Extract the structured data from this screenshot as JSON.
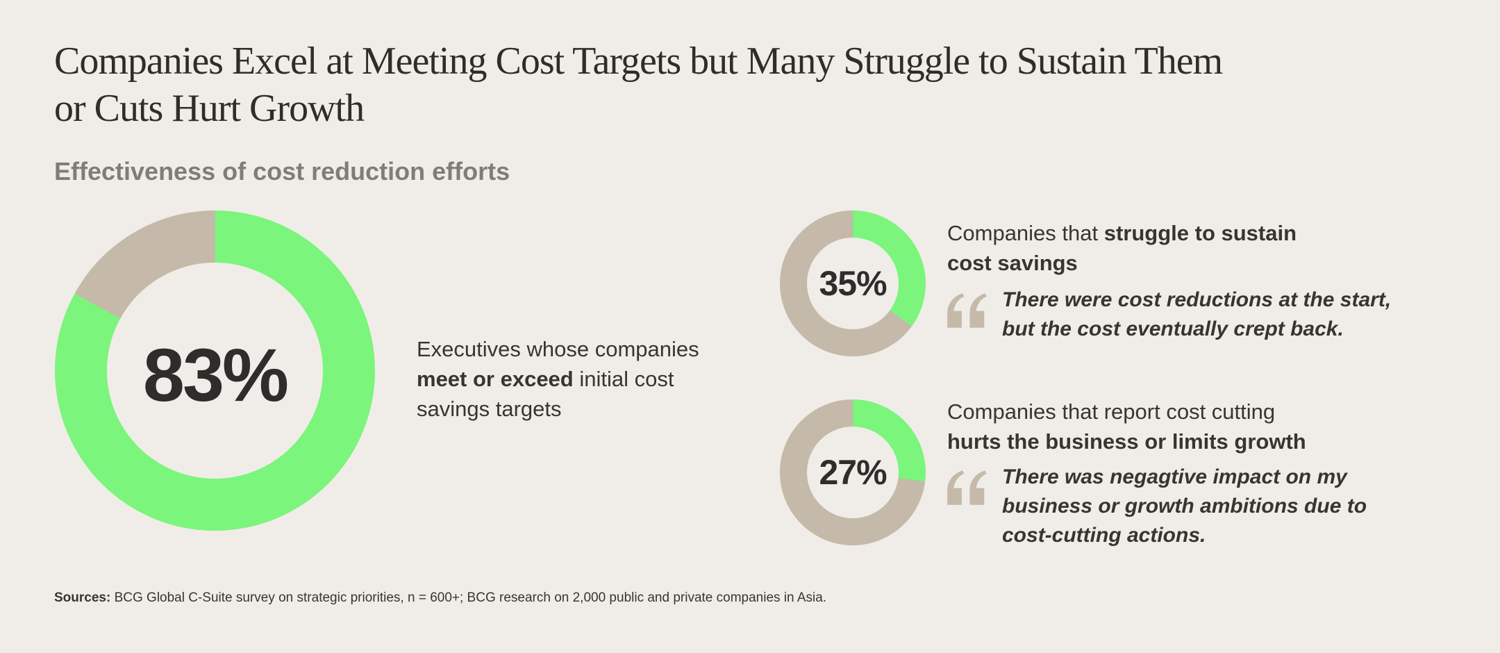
{
  "header": {
    "title": "Companies Excel at Meeting Cost Targets but Many Struggle to Sustain Them\nor Cuts Hurt Growth",
    "subtitle": "Effectiveness of cost reduction efforts"
  },
  "colors": {
    "background": "#F0EDE8",
    "green": "#7CF57C",
    "beige": "#C5B9A9",
    "text_dark": "#2E2D2B",
    "text_body": "#38352F",
    "subtitle_gray": "#807D78"
  },
  "chart_data": [
    {
      "type": "pie",
      "subtype": "donut",
      "center_label": "83%",
      "values": [
        83,
        17
      ],
      "labels": [
        "Executives whose companies meet or exceed initial cost savings targets",
        "Remainder"
      ],
      "segment_colors": [
        "green",
        "beige"
      ],
      "start_angle_deg": 0,
      "direction": "clockwise"
    },
    {
      "type": "pie",
      "subtype": "donut",
      "center_label": "35%",
      "values": [
        35,
        65
      ],
      "labels": [
        "Companies that struggle to sustain cost savings",
        "Remainder"
      ],
      "segment_colors": [
        "green",
        "beige"
      ],
      "start_angle_deg": 0,
      "direction": "clockwise"
    },
    {
      "type": "pie",
      "subtype": "donut",
      "center_label": "27%",
      "values": [
        27,
        73
      ],
      "labels": [
        "Companies that report cost cutting hurts the business or limits growth",
        "Remainder"
      ],
      "segment_colors": [
        "green",
        "beige"
      ],
      "start_angle_deg": 0,
      "direction": "clockwise"
    }
  ],
  "big_donut": {
    "description": [
      {
        "t": "Executives whose companies\n",
        "b": false
      },
      {
        "t": "meet or exceed",
        "b": true
      },
      {
        "t": " initial cost\nsavings targets",
        "b": false
      }
    ]
  },
  "panel_sustain": {
    "heading": [
      {
        "t": "Companies that ",
        "b": false
      },
      {
        "t": "struggle to sustain\ncost savings",
        "b": true
      }
    ],
    "quote": "There were cost reductions at the start,\nbut the cost eventually crept back."
  },
  "panel_growth": {
    "heading": [
      {
        "t": "Companies that report cost cutting\n",
        "b": false
      },
      {
        "t": "hurts the business or limits growth",
        "b": true
      }
    ],
    "quote": "There was negagtive impact on my\nbusiness or growth ambitions due to\ncost-cutting actions."
  },
  "footer": {
    "sources": [
      {
        "t": "Sources:",
        "b": true
      },
      {
        "t": " BCG Global C-Suite survey on strategic priorities, n = 600+; BCG research on 2,000 public and private companies in Asia.",
        "b": false
      }
    ]
  }
}
